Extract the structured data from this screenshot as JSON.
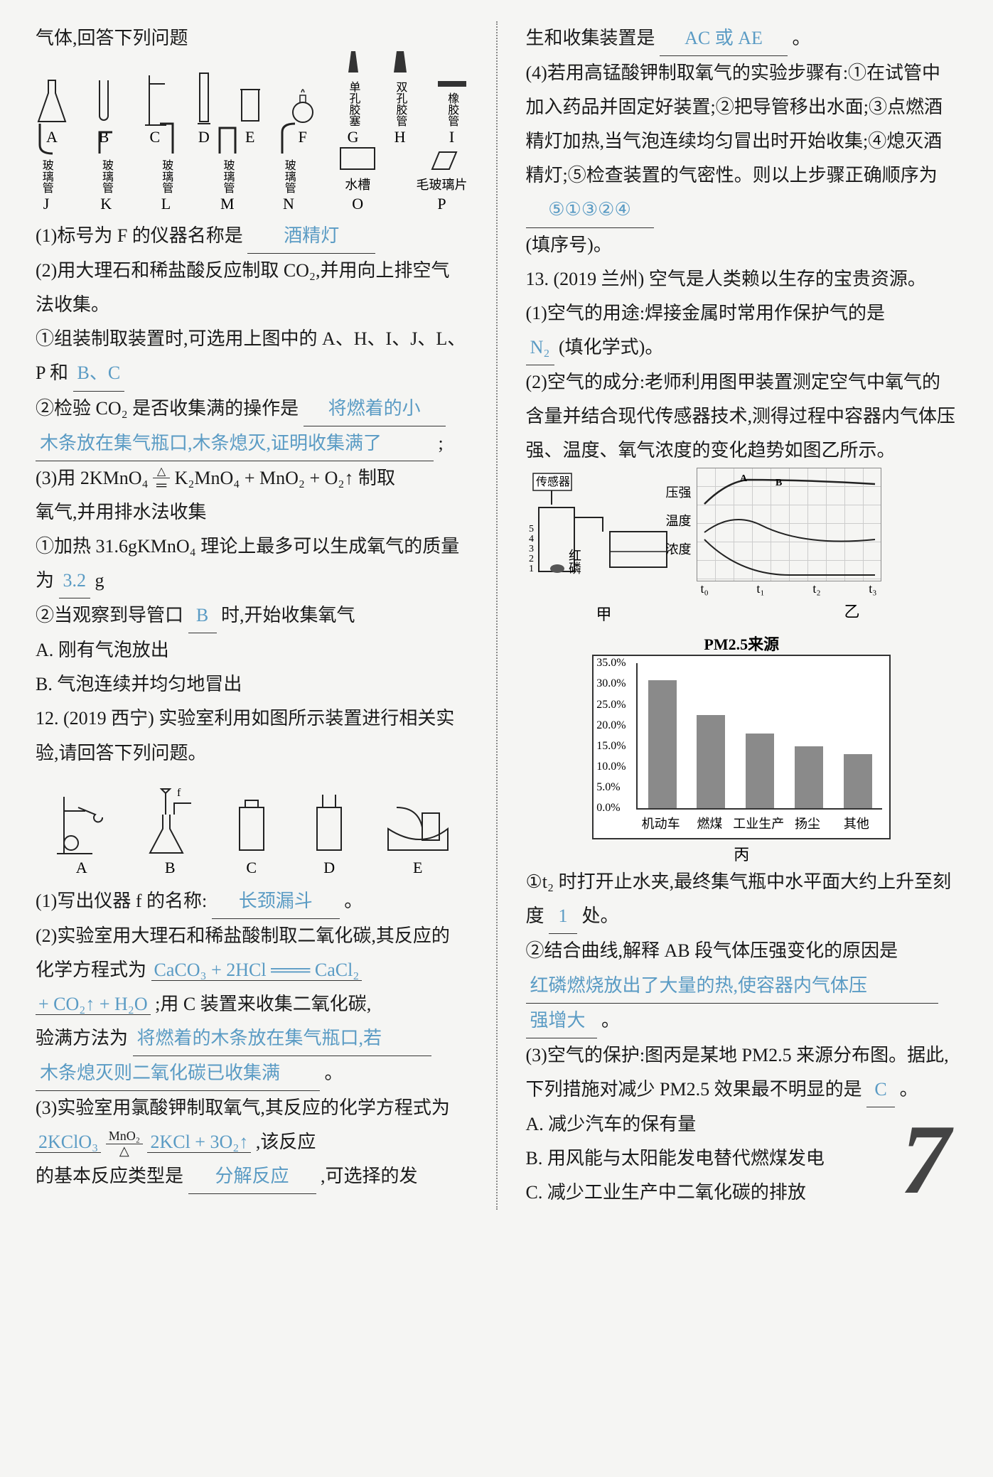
{
  "col_left": {
    "opening": "气体,回答下列问题",
    "apparatus_row1": [
      {
        "label": "A",
        "name": "锥形瓶"
      },
      {
        "label": "B",
        "name": "试管"
      },
      {
        "label": "C",
        "name": "铁架台"
      },
      {
        "label": "D",
        "name": "量筒"
      },
      {
        "label": "E",
        "name": "烧杯"
      },
      {
        "label": "F",
        "name": "酒精灯"
      },
      {
        "label": "G",
        "name": "单孔胶塞"
      },
      {
        "label": "H",
        "name": "双孔胶管"
      },
      {
        "label": "I",
        "name": "橡胶管"
      }
    ],
    "apparatus_row2": [
      {
        "label": "J",
        "name": "玻璃管"
      },
      {
        "label": "K",
        "name": "玻璃管"
      },
      {
        "label": "L",
        "name": "玻璃管"
      },
      {
        "label": "M",
        "name": "玻璃管"
      },
      {
        "label": "N",
        "name": "玻璃管"
      },
      {
        "label": "O",
        "name": "水槽"
      },
      {
        "label": "P",
        "name": "毛玻璃片"
      }
    ],
    "q1_prefix": "(1)标号为 F 的仪器名称是",
    "q1_ans": "酒精灯",
    "q2": "(2)用大理石和稀盐酸反应制取 CO₂,并用向上排空气法收集。",
    "q2_1": "①组装制取装置时,可选用上图中的 A、H、I、J、L、P 和",
    "q2_1_ans": "B、C",
    "q2_2": "②检验 CO₂ 是否收集满的操作是",
    "q2_2_ans_a": "将燃着的小",
    "q2_2_ans_b": "木条放在集气瓶口,木条熄灭,证明收集满了",
    "q3": "(3)用 2KMnO₄",
    "q3_eq_right": "K₂MnO₄ + MnO₂ + O₂↑ 制取",
    "q3_tail": "氧气,并用排水法收集",
    "q3_1": "①加热 31.6gKMnO₄ 理论上最多可以生成氧气的质量为",
    "q3_1_ans": "3.2",
    "q3_1_unit": "g",
    "q3_2": "②当观察到导管口",
    "q3_2_ans": "B",
    "q3_2_tail": "时,开始收集氧气",
    "q3_A": "A. 刚有气泡放出",
    "q3_B": "B. 气泡连续并均匀地冒出",
    "q12": "12. (2019 西宁) 实验室利用如图所示装置进行相关实验,请回答下列问题。",
    "devices": [
      {
        "label": "A"
      },
      {
        "label": "B"
      },
      {
        "label": "C"
      },
      {
        "label": "D"
      },
      {
        "label": "E"
      }
    ],
    "q12_1": "(1)写出仪器 f 的名称:",
    "q12_1_ans": "长颈漏斗",
    "q12_2": "(2)实验室用大理石和稀盐酸制取二氧化碳,其反应的化学方程式为",
    "q12_2_eq": "CaCO₃ + 2HCl ═══ CaCl₂",
    "q12_2_eq2": "+ CO₂↑ + H₂O",
    "q12_2_mid": ";用 C 装置来收集二氧化碳,",
    "q12_2_b": "验满方法为",
    "q12_2_b_ans": "将燃着的木条放在集气瓶口,若",
    "q12_2_b_ans2": "木条熄灭则二氧化碳已收集满",
    "q12_3": "(3)实验室用氯酸钾制取氧气,其反应的化学方程式为",
    "q12_3_eq_left": "2KClO₃",
    "q12_3_eq_right": "2KCl + 3O₂↑",
    "q12_3_mid": ",该反应",
    "q12_3_tail": "的基本反应类型是",
    "q12_3_ans": "分解反应",
    "q12_3_end": ",可选择的发"
  },
  "col_right": {
    "cont": "生和收集装置是",
    "cont_ans": "AC 或 AE",
    "q4": "(4)若用高锰酸钾制取氧气的实验步骤有:①在试管中加入药品并固定好装置;②把导管移出水面;③点燃酒精灯加热,当气泡连续均匀冒出时开始收集;④熄灭酒精灯;⑤检查装置的气密性。则以上步骤正确顺序为",
    "q4_ans": "⑤①③②④",
    "q4_tail": "(填序号)。",
    "q13": "13. (2019 兰州) 空气是人类赖以生存的宝贵资源。",
    "q13_1": "(1)空气的用途:焊接金属时常用作保护气的是",
    "q13_1_ans": "N₂",
    "q13_1_tail": "(填化学式)。",
    "q13_2": "(2)空气的成分:老师利用图甲装置测定空气中氧气的含量并结合现代传感器技术,测得过程中容器内气体压强、温度、氧气浓度的变化趋势如图乙所示。",
    "sensor_label": "传感器",
    "hongli": "红磷",
    "jia": "甲",
    "yi": "乙",
    "line_labels": [
      "压强",
      "温度",
      "浓度"
    ],
    "axis_t": [
      "t₀",
      "t₁",
      "t₂",
      "t₃"
    ],
    "chart_title": "PM2.5来源",
    "bar_chart": {
      "type": "bar",
      "categories": [
        "机动车",
        "燃煤",
        "工业生产",
        "扬尘",
        "其他"
      ],
      "values": [
        31,
        22.5,
        18,
        15,
        13
      ],
      "bar_colors": [
        "#8a8a8a",
        "#8a8a8a",
        "#8a8a8a",
        "#8a8a8a",
        "#8a8a8a"
      ],
      "ylim": [
        0,
        35
      ],
      "ytick_step": 5,
      "yticks": [
        "0.0%",
        "5.0%",
        "10.0%",
        "15.0%",
        "20.0%",
        "25.0%",
        "30.0%",
        "35.0%"
      ],
      "background_color": "#ffffff",
      "border_color": "#333333"
    },
    "bing": "丙",
    "q13_2_1": "①t₂ 时打开止水夹,最终集气瓶中水平面大约上升至刻度",
    "q13_2_1_ans": "1",
    "q13_2_1_tail": "处。",
    "q13_2_2": "②结合曲线,解释 AB 段气体压强变化的原因是",
    "q13_2_2_ans": "红磷燃烧放出了大量的热,使容器内气体压",
    "q13_2_2_ans2": "强增大",
    "q13_3": "(3)空气的保护:图丙是某地 PM2.5 来源分布图。据此,下列措施对减少 PM2.5 效果最不明显的是",
    "q13_3_ans": "C",
    "q13_A": "A. 减少汽车的保有量",
    "q13_B": "B. 用风能与太阳能发电替代燃煤发电",
    "q13_C": "C. 减少工业生产中二氧化碳的排放"
  },
  "page_number": "7",
  "colors": {
    "fill_text": "#5a9bc4",
    "body_bg": "#f5f5f3",
    "text": "#1a1a1a"
  }
}
